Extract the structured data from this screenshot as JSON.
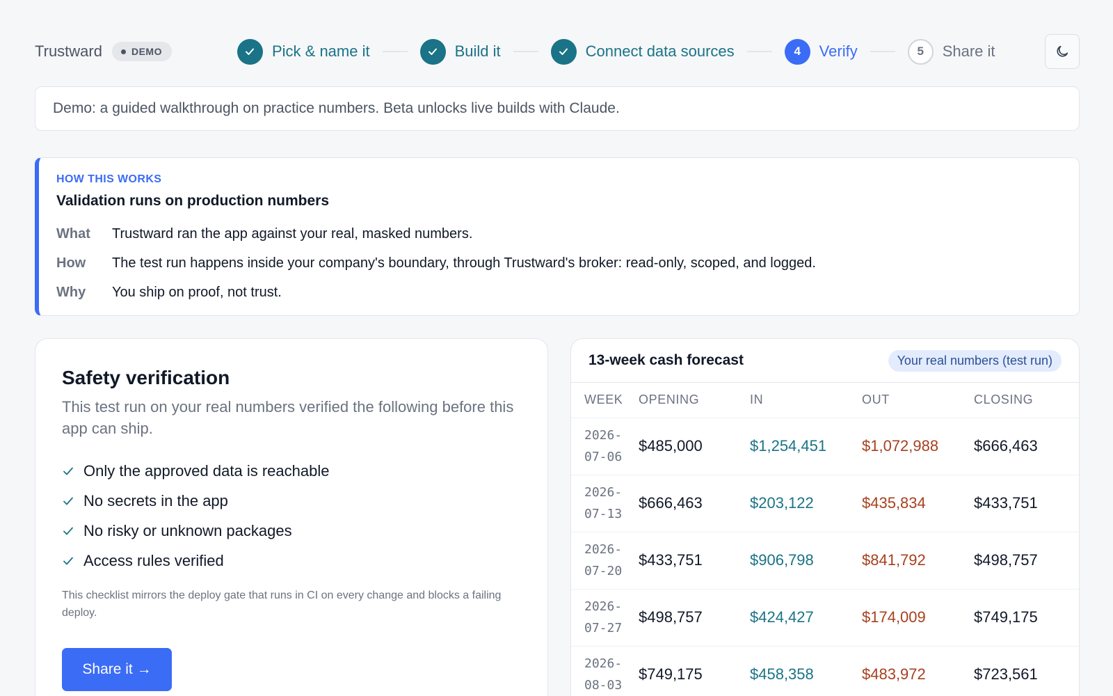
{
  "brand": {
    "name": "Trustward",
    "badge": "DEMO"
  },
  "steps": [
    {
      "number": "1",
      "label": "Pick & name it",
      "state": "done"
    },
    {
      "number": "2",
      "label": "Build it",
      "state": "done"
    },
    {
      "number": "3",
      "label": "Connect data sources",
      "state": "done"
    },
    {
      "number": "4",
      "label": "Verify",
      "state": "active"
    },
    {
      "number": "5",
      "label": "Share it",
      "state": "todo"
    }
  ],
  "theme_toggle": {
    "icon": "moon-icon"
  },
  "notice": {
    "text": "Demo: a guided walkthrough on practice numbers. Beta unlocks live builds with Claude."
  },
  "how": {
    "eyebrow": "HOW THIS WORKS",
    "title": "Validation runs on production numbers",
    "rows": [
      {
        "key": "What",
        "value": "Trustward ran the app against your real, masked numbers."
      },
      {
        "key": "How",
        "value": "The test run happens inside your company's boundary, through Trustward's broker: read-only, scoped, and logged."
      },
      {
        "key": "Why",
        "value": "You ship on proof, not trust."
      }
    ]
  },
  "safety": {
    "title": "Safety verification",
    "description": "This test run on your real numbers verified the following before this app can ship.",
    "checks": [
      "Only the approved data is reachable",
      "No secrets in the app",
      "No risky or unknown packages",
      "Access rules verified"
    ],
    "footnote": "This checklist mirrors the deploy gate that runs in CI on every change and blocks a failing deploy.",
    "button_label": "Share it →"
  },
  "forecast": {
    "title": "13-week cash forecast",
    "pill": "Your real numbers (test run)",
    "columns": [
      "WEEK",
      "OPENING",
      "IN",
      "OUT",
      "CLOSING"
    ],
    "rows": [
      {
        "week_a": "2026-",
        "week_b": "07-06",
        "opening": "$485,000",
        "in": "$1,254,451",
        "out": "$1,072,988",
        "closing": "$666,463"
      },
      {
        "week_a": "2026-",
        "week_b": "07-13",
        "opening": "$666,463",
        "in": "$203,122",
        "out": "$435,834",
        "closing": "$433,751"
      },
      {
        "week_a": "2026-",
        "week_b": "07-20",
        "opening": "$433,751",
        "in": "$906,798",
        "out": "$841,792",
        "closing": "$498,757"
      },
      {
        "week_a": "2026-",
        "week_b": "07-27",
        "opening": "$498,757",
        "in": "$424,427",
        "out": "$174,009",
        "closing": "$749,175"
      },
      {
        "week_a": "2026-",
        "week_b": "08-03",
        "opening": "$749,175",
        "in": "$458,358",
        "out": "$483,972",
        "closing": "$723,561"
      }
    ]
  },
  "colors": {
    "accent": "#3b6cf6",
    "done": "#1a7386",
    "inflow": "#1a7386",
    "outflow": "#a8401e"
  }
}
